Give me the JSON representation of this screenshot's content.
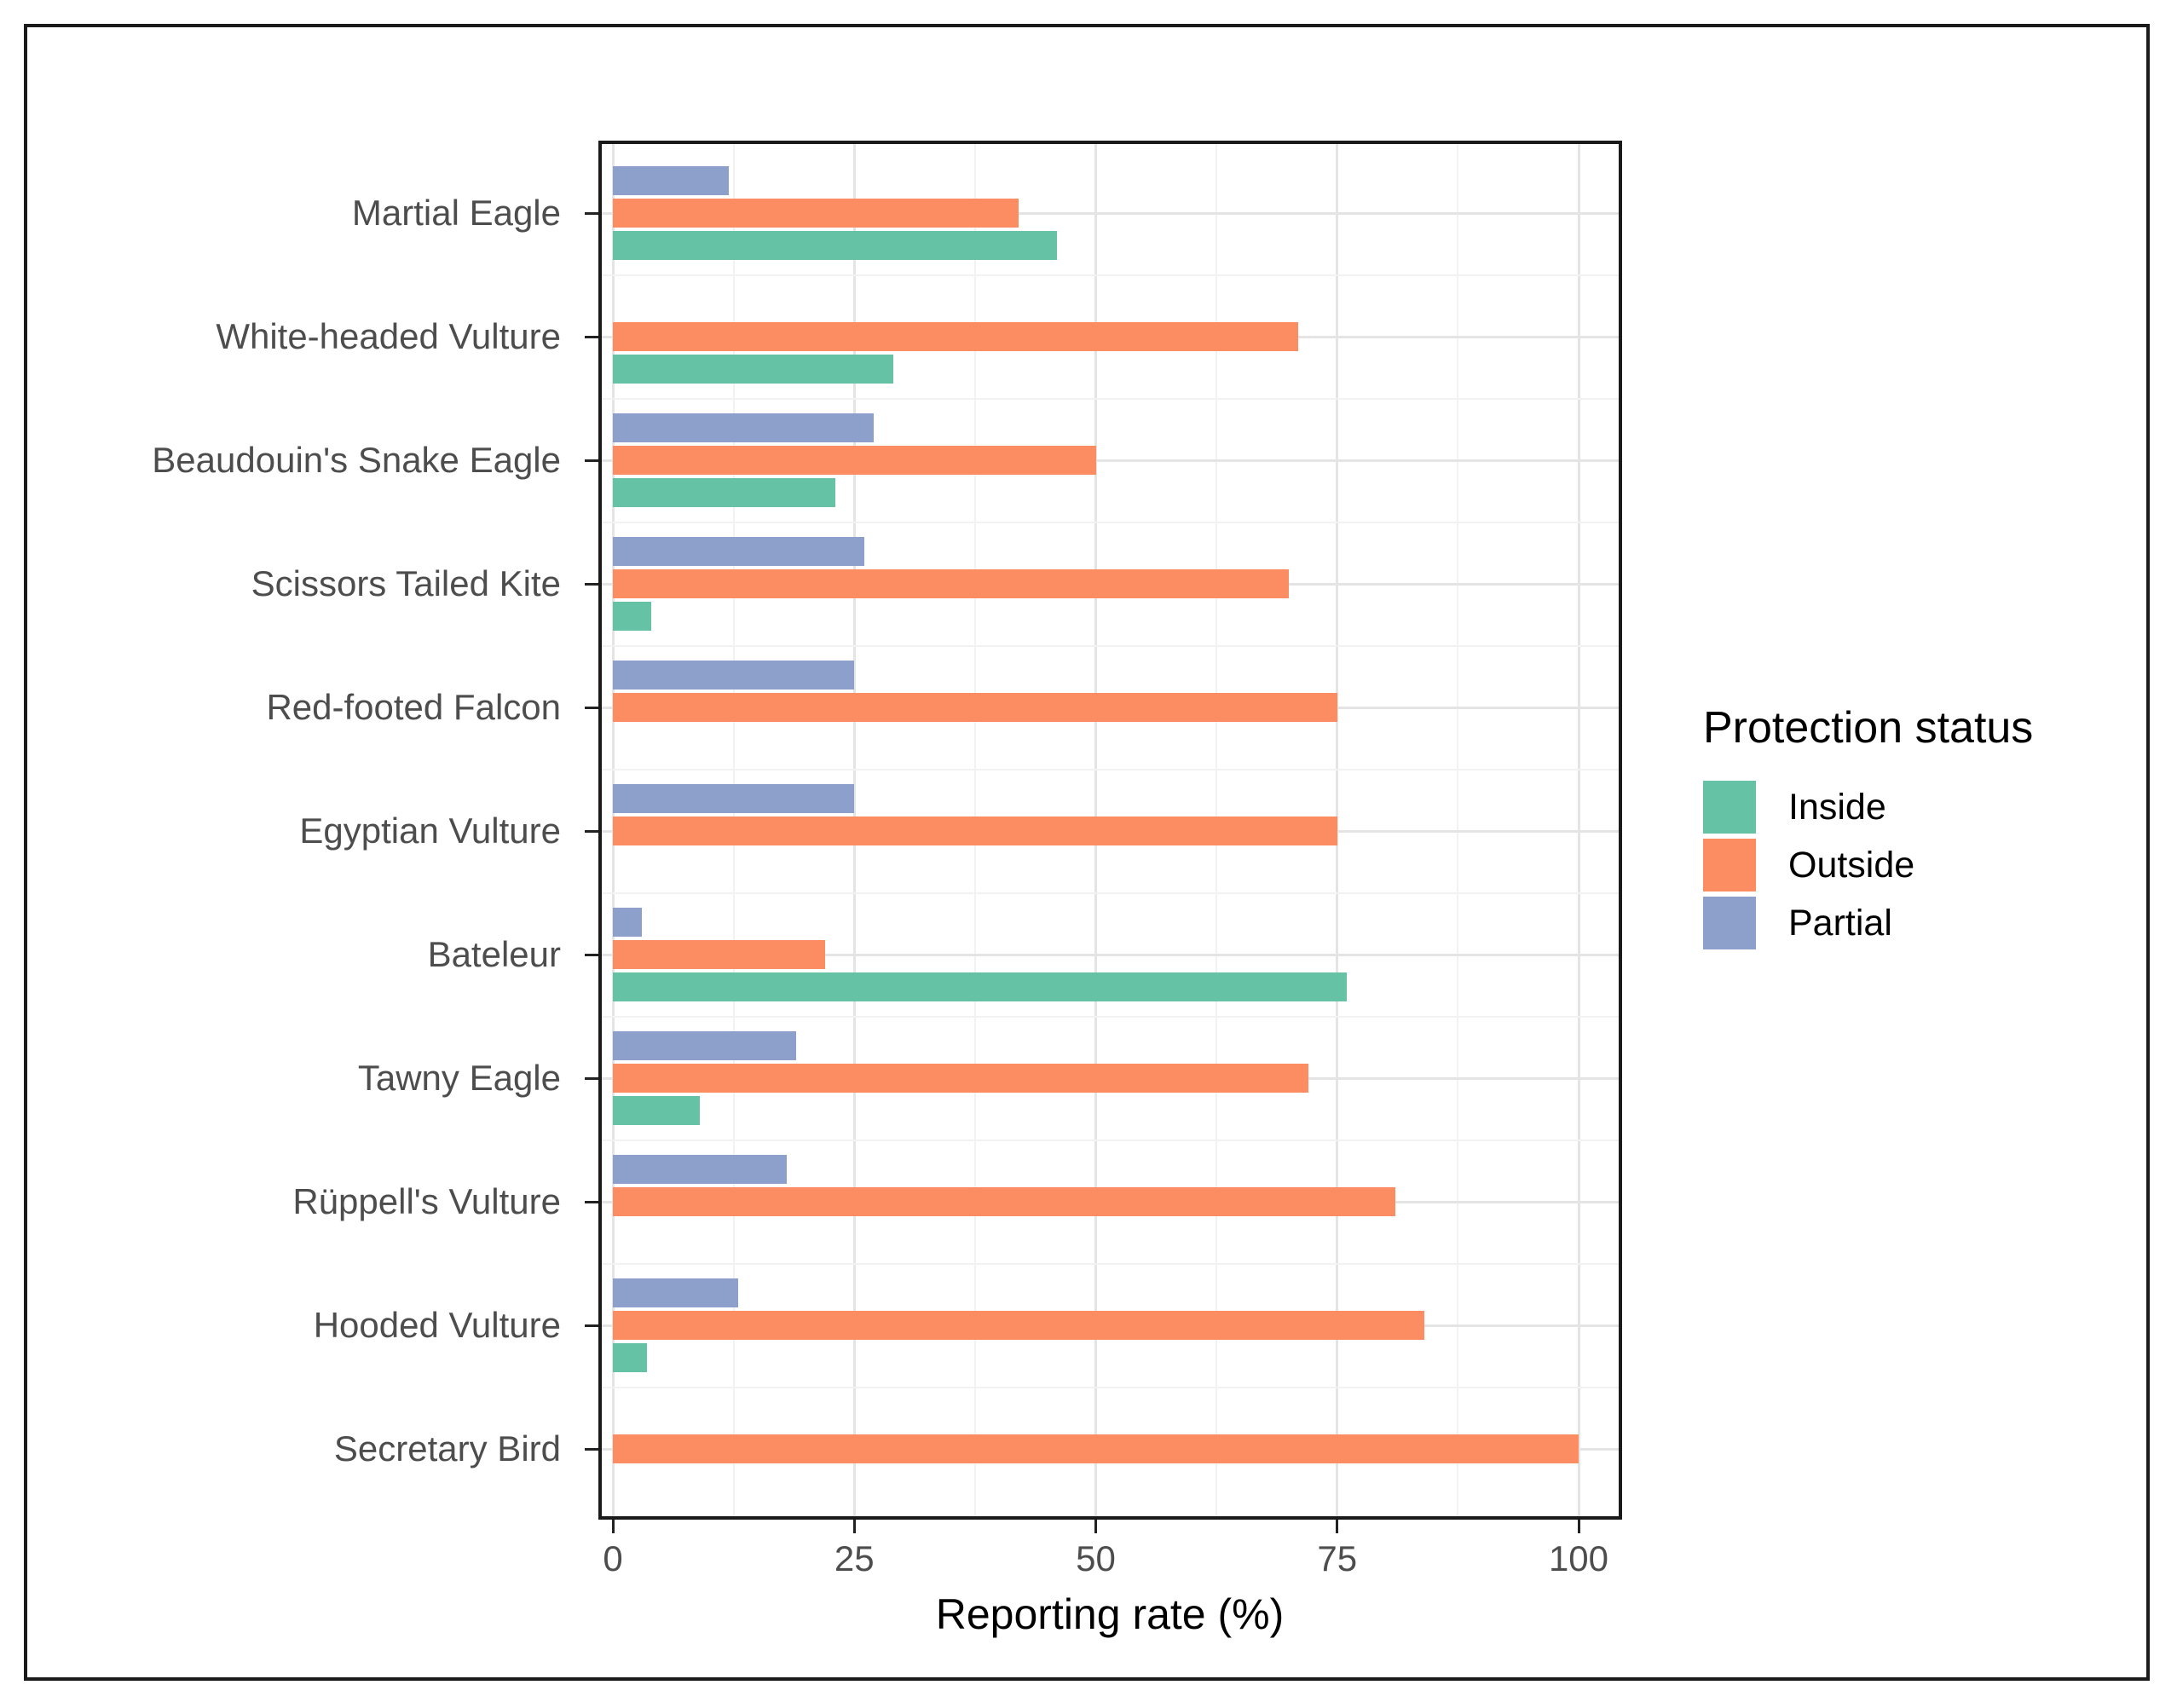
{
  "chart_data": {
    "type": "bar",
    "orientation": "horizontal",
    "title": "",
    "xlabel": "Reporting rate (%)",
    "ylabel": "",
    "x_tick_values": [
      0,
      25,
      50,
      75,
      100
    ],
    "x_tick_labels": [
      "0",
      "25",
      "50",
      "75",
      "100"
    ],
    "xlim": [
      0,
      104.5
    ],
    "grid": {
      "major": true,
      "minor": true
    },
    "legend_position": "right",
    "bar_slot_order_top_to_bottom": [
      "Partial",
      "Outside",
      "Inside"
    ],
    "categories": [
      "Martial Eagle",
      "White-headed Vulture",
      "Beaudouin's Snake Eagle",
      "Scissors Tailed Kite",
      "Red-footed Falcon",
      "Egyptian Vulture",
      "Bateleur",
      "Tawny Eagle",
      "Rüppell's Vulture",
      "Hooded Vulture",
      "Secretary Bird"
    ],
    "series": [
      {
        "name": "Partial",
        "color": "#8DA0CB",
        "values": [
          12,
          null,
          27,
          26,
          25,
          25,
          3,
          19,
          18,
          13,
          null
        ]
      },
      {
        "name": "Outside",
        "color": "#FC8D62",
        "values": [
          42,
          71,
          50,
          70,
          75,
          75,
          22,
          72,
          81,
          84,
          100
        ]
      },
      {
        "name": "Inside",
        "color": "#66C2A5",
        "values": [
          46,
          29,
          23,
          4,
          null,
          null,
          76,
          9,
          null,
          3.5,
          null
        ]
      }
    ]
  },
  "legend": {
    "title": "Protection status",
    "items": [
      {
        "label": "Inside",
        "color": "#66C2A5"
      },
      {
        "label": "Outside",
        "color": "#FC8D62"
      },
      {
        "label": "Partial",
        "color": "#8DA0CB"
      }
    ]
  },
  "colors": {
    "inside": "#66C2A5",
    "outside": "#FC8D62",
    "partial": "#8DA0CB",
    "grid_major": "#e4e4e4",
    "grid_minor": "#f2f2f2",
    "axis_text": "#4d4d4d",
    "panel_border": "#1a1a1a"
  }
}
